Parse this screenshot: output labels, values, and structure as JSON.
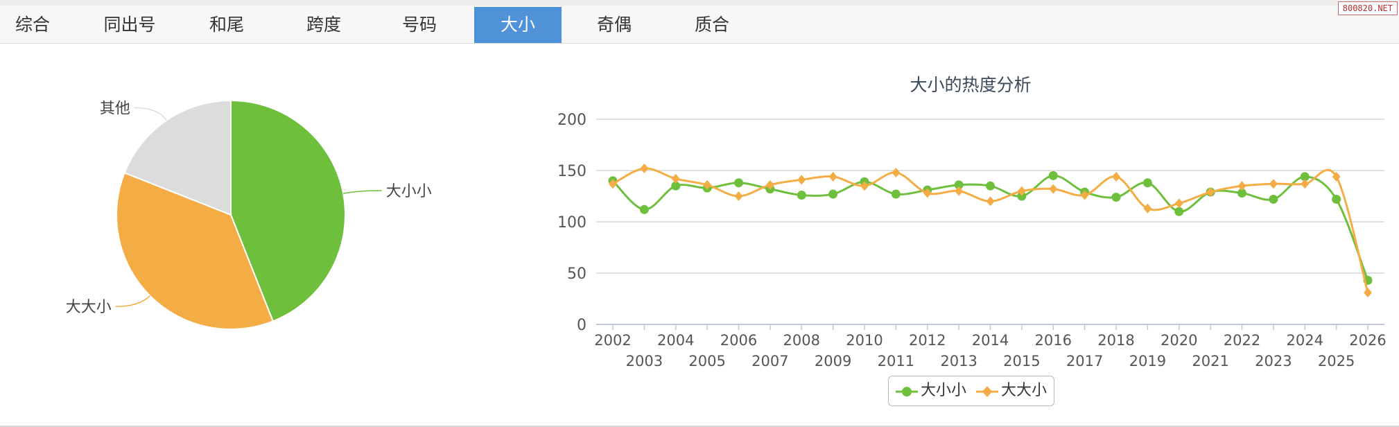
{
  "tabs": [
    "综合",
    "同出号",
    "和尾",
    "跨度",
    "号码",
    "大小",
    "奇偶",
    "质合"
  ],
  "active_tab": "大小",
  "watermark": "800820.NET",
  "colors": {
    "green": "#6ebf3c",
    "orange": "#f3ad44",
    "gray": "#dcdcdc",
    "tab_active": "#4f92d8"
  },
  "chart_data": [
    {
      "type": "pie",
      "slices": [
        {
          "label": "大小小",
          "value": 44,
          "color": "#6ebf3c"
        },
        {
          "label": "大大小",
          "value": 37,
          "color": "#f3ad44"
        },
        {
          "label": "其他",
          "value": 19,
          "color": "#dcdcdc"
        }
      ]
    },
    {
      "type": "line",
      "title": "大小的热度分析",
      "x": [
        "2002",
        "2003",
        "2004",
        "2005",
        "2006",
        "2007",
        "2008",
        "2009",
        "2010",
        "2011",
        "2012",
        "2013",
        "2014",
        "2015",
        "2016",
        "2017",
        "2018",
        "2019",
        "2020",
        "2021",
        "2022",
        "2023",
        "2024",
        "2025",
        "2026"
      ],
      "ylim": [
        0,
        200
      ],
      "yticks": [
        0,
        50,
        100,
        150,
        200
      ],
      "grid": true,
      "legend_position": "bottom",
      "series": [
        {
          "name": "大小小",
          "color": "#6ebf3c",
          "marker": "circle",
          "values": [
            140,
            112,
            135,
            133,
            138,
            132,
            126,
            127,
            139,
            127,
            131,
            136,
            135,
            125,
            145,
            129,
            124,
            138,
            110,
            129,
            128,
            122,
            144,
            122,
            43
          ]
        },
        {
          "name": "大大小",
          "color": "#f3ad44",
          "marker": "diamond",
          "values": [
            137,
            152,
            142,
            136,
            125,
            136,
            141,
            144,
            135,
            148,
            128,
            130,
            120,
            130,
            132,
            126,
            144,
            113,
            118,
            129,
            135,
            137,
            137,
            144,
            31
          ]
        }
      ]
    }
  ]
}
